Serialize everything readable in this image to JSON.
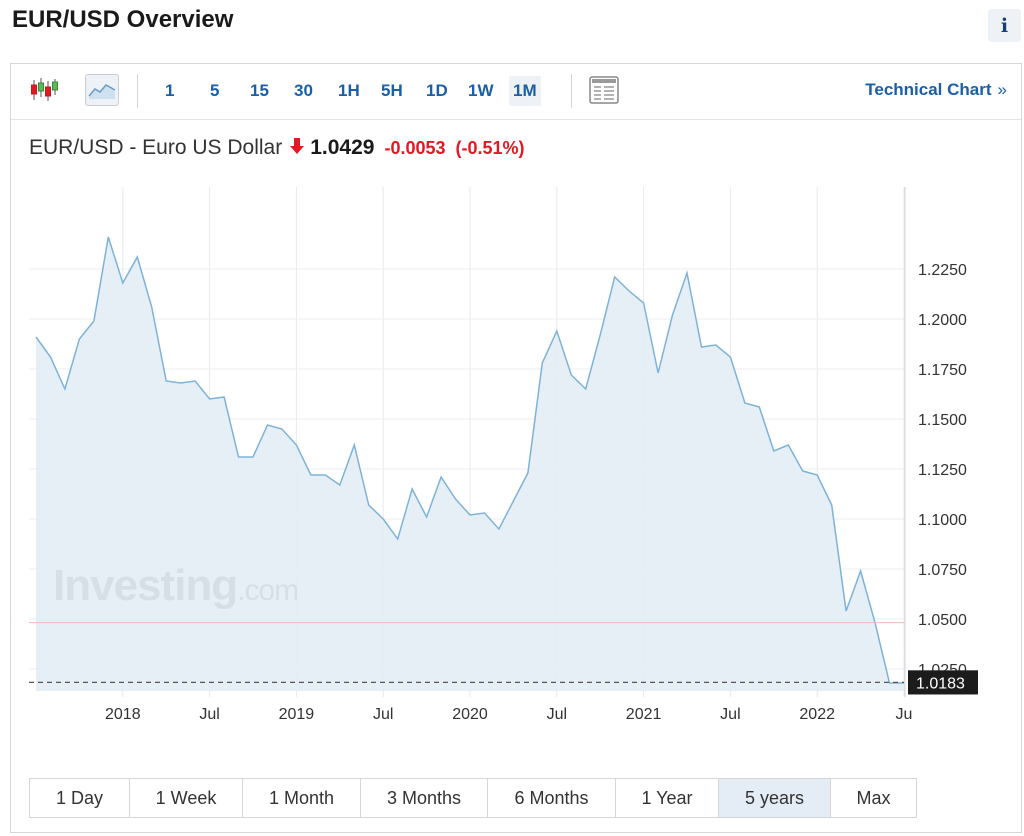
{
  "page": {
    "title": "EUR/USD Overview",
    "info_label": "i"
  },
  "toolbar": {
    "intervals": [
      "1",
      "5",
      "15",
      "30",
      "1H",
      "5H",
      "1D",
      "1W",
      "1M"
    ],
    "active_interval": "1M",
    "technical_chart_label": "Technical Chart",
    "technical_chart_chevron": "»"
  },
  "quote": {
    "name": "EUR/USD - Euro US Dollar",
    "direction": "down",
    "last": "1.0429",
    "change": "-0.0053",
    "change_pct": "(-0.51%)"
  },
  "watermark": {
    "brand": "Investing",
    "suffix": ".com"
  },
  "ranges": {
    "items": [
      "1 Day",
      "1 Week",
      "1 Month",
      "3 Months",
      "6 Months",
      "1 Year",
      "5 years",
      "Max"
    ],
    "active": "5 years"
  },
  "colors": {
    "line": "#7db3d8",
    "area": "#e3ecf4",
    "down": "#e01a22",
    "link": "#1a5fa8",
    "ref_line": "#f2b8b8"
  },
  "chart_data": {
    "type": "area",
    "xlabel": "",
    "ylabel": "",
    "x_ticks": [
      "2018",
      "Jul",
      "2019",
      "Jul",
      "2020",
      "Jul",
      "2021",
      "Jul",
      "2022",
      "Ju"
    ],
    "x_tick_dates": [
      "2018-01",
      "2018-07",
      "2019-01",
      "2019-07",
      "2020-01",
      "2020-07",
      "2021-01",
      "2021-07",
      "2022-01",
      "2022-07"
    ],
    "y_ticks": [
      "1.2250",
      "1.2000",
      "1.1750",
      "1.1500",
      "1.1250",
      "1.1000",
      "1.0750",
      "1.0500",
      "1.0250"
    ],
    "ylim": [
      1.014,
      1.266
    ],
    "current_value_label": "1.0183",
    "reference_level": 1.0482,
    "series": [
      {
        "x": [
          "2017-07",
          "2017-08",
          "2017-09",
          "2017-10",
          "2017-11",
          "2017-12",
          "2018-01",
          "2018-02",
          "2018-03",
          "2018-04",
          "2018-05",
          "2018-06",
          "2018-07",
          "2018-08",
          "2018-09",
          "2018-10",
          "2018-11",
          "2018-12",
          "2019-01",
          "2019-02",
          "2019-03",
          "2019-04",
          "2019-05",
          "2019-06",
          "2019-07",
          "2019-08",
          "2019-09",
          "2019-10",
          "2019-11",
          "2019-12",
          "2020-01",
          "2020-02",
          "2020-03",
          "2020-04",
          "2020-05",
          "2020-06",
          "2020-07",
          "2020-08",
          "2020-09",
          "2020-10",
          "2020-11",
          "2020-12",
          "2021-01",
          "2021-02",
          "2021-03",
          "2021-04",
          "2021-05",
          "2021-06",
          "2021-07",
          "2021-08",
          "2021-09",
          "2021-10",
          "2021-11",
          "2021-12",
          "2022-01",
          "2022-02",
          "2022-03",
          "2022-04",
          "2022-05",
          "2022-06",
          "2022-07"
        ],
        "values": [
          1.191,
          1.181,
          1.165,
          1.19,
          1.199,
          1.241,
          1.218,
          1.231,
          1.206,
          1.169,
          1.168,
          1.169,
          1.16,
          1.161,
          1.131,
          1.131,
          1.147,
          1.145,
          1.137,
          1.122,
          1.122,
          1.117,
          1.137,
          1.107,
          1.1,
          1.09,
          1.115,
          1.101,
          1.121,
          1.11,
          1.102,
          1.103,
          1.095,
          1.109,
          1.123,
          1.178,
          1.194,
          1.172,
          1.165,
          1.192,
          1.221,
          1.214,
          1.208,
          1.173,
          1.202,
          1.223,
          1.186,
          1.187,
          1.181,
          1.158,
          1.156,
          1.134,
          1.137,
          1.124,
          1.122,
          1.107,
          1.054,
          1.074,
          1.048,
          1.018,
          1.018
        ]
      }
    ]
  }
}
